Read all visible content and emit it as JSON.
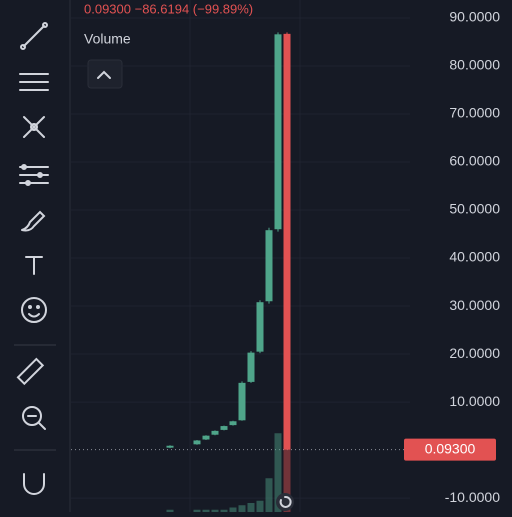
{
  "header": {
    "quote": "0.09300 −86.6194 (−99.89%)",
    "volume_label": "Volume"
  },
  "chart_data": {
    "type": "candlestick",
    "categories": [
      null,
      null,
      null,
      null,
      null,
      null,
      null,
      null,
      null,
      null,
      null,
      null,
      null,
      null
    ],
    "open": [
      0.5,
      null,
      null,
      1.2,
      2.2,
      3.2,
      4.2,
      5.2,
      6.2,
      14.2,
      20.5,
      31,
      46,
      86.7
    ],
    "high": [
      1,
      null,
      null,
      2.1,
      3.1,
      4.1,
      5.1,
      6.1,
      14.3,
      20.6,
      31.2,
      46.3,
      87,
      87
    ],
    "low": [
      0.4,
      null,
      null,
      1.1,
      2.1,
      3.1,
      4.1,
      5.1,
      6.1,
      14,
      20.2,
      30.5,
      45.5,
      0.093
    ],
    "close": [
      0.9,
      null,
      null,
      2,
      3,
      4,
      5,
      6,
      14,
      20.3,
      30.8,
      45.8,
      86.6,
      0.093
    ],
    "volume": [
      0.1,
      null,
      null,
      0.1,
      0.1,
      0.1,
      0.1,
      0.2,
      0.3,
      0.4,
      0.5,
      1.5,
      3.5,
      4
    ],
    "up_color": "#4fa58a",
    "down_color": "#e25252",
    "ylim": [
      -12.9,
      93.75
    ],
    "yticks": [
      {
        "value": 90,
        "label": "90.0000"
      },
      {
        "value": 80,
        "label": "80.0000"
      },
      {
        "value": 70,
        "label": "70.0000"
      },
      {
        "value": 60,
        "label": "60.0000"
      },
      {
        "value": 50,
        "label": "50.0000"
      },
      {
        "value": 40,
        "label": "40.0000"
      },
      {
        "value": 30,
        "label": "30.0000"
      },
      {
        "value": 20,
        "label": "20.0000"
      },
      {
        "value": 10,
        "label": "10.0000"
      },
      {
        "value": -10,
        "label": "-10.0000"
      }
    ],
    "last_price": {
      "value": 0.093,
      "label": "0.09300"
    },
    "grid": true
  }
}
